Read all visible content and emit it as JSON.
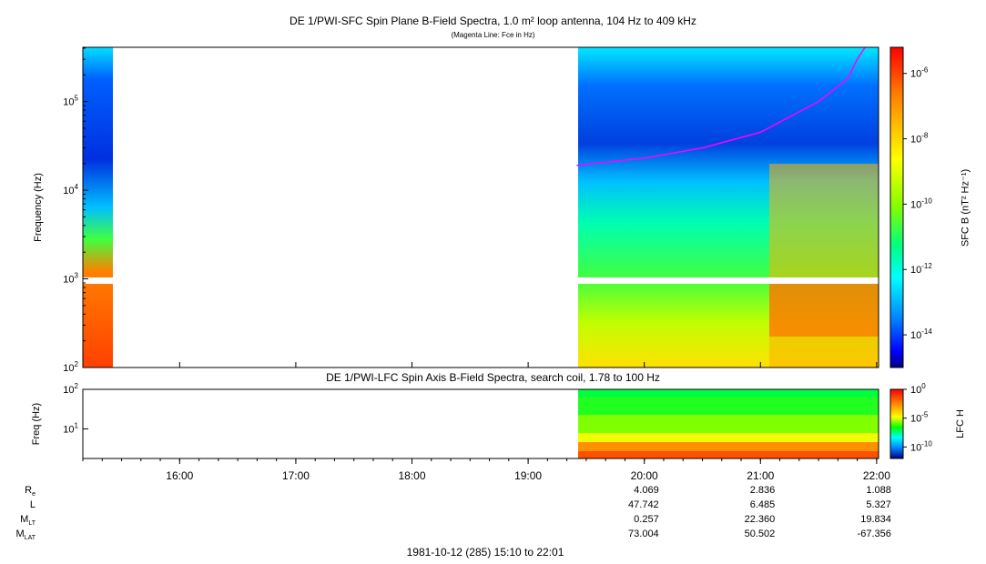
{
  "title": "DE 1/PWI-SFC  Spin Plane B-Field Spectra, 1.0 m² loop antenna, 104 Hz to 409 kHz",
  "subtitle": "(Magenta Line: Fce in Hz)",
  "lower_title": "DE 1/PWI-LFC  Spin Axis B-Field Spectra, search coil, 1.78 to 100 Hz",
  "footer": "1981-10-12 (285) 15:10 to 22:01",
  "ephemeris": {
    "labels": [
      "R",
      "L",
      "M",
      "M"
    ],
    "label_subs": [
      "e",
      "",
      "LT",
      "LAT"
    ],
    "times": [
      "20:00",
      "21:00",
      "22:00"
    ],
    "rows": [
      [
        "4.069",
        "2.836",
        "1.088"
      ],
      [
        "47.742",
        "6.485",
        "5.327"
      ],
      [
        "0.257",
        "22.360",
        "19.834"
      ],
      [
        "73.004",
        "50.502",
        "-67.356"
      ]
    ]
  },
  "chart_data": [
    {
      "type": "heatmap",
      "title": "DE 1/PWI-SFC  Spin Plane B-Field Spectra, 1.0 m² loop antenna, 104 Hz to 409 kHz",
      "ylabel": "Frequency (Hz)",
      "yscale": "log",
      "ylim": [
        100,
        409000
      ],
      "yticks": [
        "10^2",
        "10^3",
        "10^4",
        "10^5"
      ],
      "xlim": [
        "15:10",
        "22:01"
      ],
      "xticks": [
        "16:00",
        "17:00",
        "18:00",
        "19:00",
        "20:00",
        "21:00",
        "22:00"
      ],
      "data_gap": [
        "15:26",
        "19:25"
      ],
      "colorbar": {
        "label": "SFC B (nT² Hz⁻¹)",
        "scale": "log",
        "ticks": [
          "10^-6",
          "10^-8",
          "10^-10",
          "10^-12",
          "10^-14"
        ],
        "colors": [
          "#ff0000",
          "#ff8000",
          "#ffff00",
          "#80ff00",
          "#00ff80",
          "#00ffff",
          "#0080ff",
          "#0000ff",
          "#000080"
        ]
      },
      "line": {
        "name": "Fce",
        "color": "#ff00ff",
        "points": [
          [
            "19:25",
            19000
          ],
          [
            "20:00",
            23000
          ],
          [
            "20:30",
            30000
          ],
          [
            "21:00",
            45000
          ],
          [
            "21:30",
            100000
          ],
          [
            "21:45",
            180000
          ],
          [
            "21:50",
            300000
          ],
          [
            "21:54",
            409000
          ]
        ]
      }
    },
    {
      "type": "heatmap",
      "title": "DE 1/PWI-LFC  Spin Axis B-Field Spectra, search coil, 1.78 to 100 Hz",
      "ylabel": "Freq (Hz)",
      "yscale": "log",
      "ylim": [
        1.78,
        100
      ],
      "yticks": [
        "10^1",
        "10^2"
      ],
      "xlim": [
        "15:10",
        "22:01"
      ],
      "data_start": "19:25",
      "colorbar": {
        "label": "LFC H",
        "scale": "log",
        "ticks": [
          "10^0",
          "10^-5",
          "10^-10"
        ]
      }
    }
  ]
}
